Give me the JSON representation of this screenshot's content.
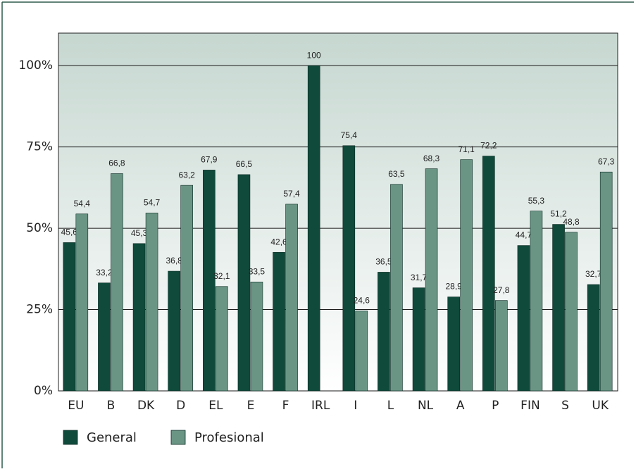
{
  "chart_data": {
    "type": "bar",
    "categories": [
      "EU",
      "B",
      "DK",
      "D",
      "EL",
      "E",
      "F",
      "IRL",
      "I",
      "L",
      "NL",
      "A",
      "P",
      "FIN",
      "S",
      "UK"
    ],
    "series": [
      {
        "name": "General",
        "color": "#0f4a3a",
        "values": [
          45.6,
          33.2,
          45.3,
          36.8,
          67.9,
          66.5,
          42.6,
          100,
          75.4,
          36.5,
          31.7,
          28.9,
          72.2,
          44.7,
          51.2,
          32.7
        ],
        "value_labels": [
          "45,6",
          "33,2",
          "45,3",
          "36,8",
          "67,9",
          "66,5",
          "42,6",
          "100",
          "75,4",
          "36,5",
          "31,7",
          "28,9",
          "72,2",
          "44,7",
          "51,2",
          "32,7"
        ]
      },
      {
        "name": "Profesional",
        "color": "#6a9585",
        "values": [
          54.4,
          66.8,
          54.7,
          63.2,
          32.1,
          33.5,
          57.4,
          null,
          24.6,
          63.5,
          68.3,
          71.1,
          27.8,
          55.3,
          48.8,
          67.3
        ],
        "value_labels": [
          "54,4",
          "66,8",
          "54,7",
          "63,2",
          "32,1",
          "33,5",
          "57,4",
          null,
          "24,6",
          "63,5",
          "68,3",
          "71,1",
          "27,8",
          "55,3",
          "48,8",
          "67,3"
        ]
      }
    ],
    "ylim": [
      0,
      110
    ],
    "yticks": [
      {
        "value": 0,
        "label": "0%"
      },
      {
        "value": 25,
        "label": "25%"
      },
      {
        "value": 50,
        "label": "50%"
      },
      {
        "value": 75,
        "label": "75%"
      },
      {
        "value": 100,
        "label": "100%"
      }
    ],
    "grid": true,
    "legend": "bottom-left"
  }
}
